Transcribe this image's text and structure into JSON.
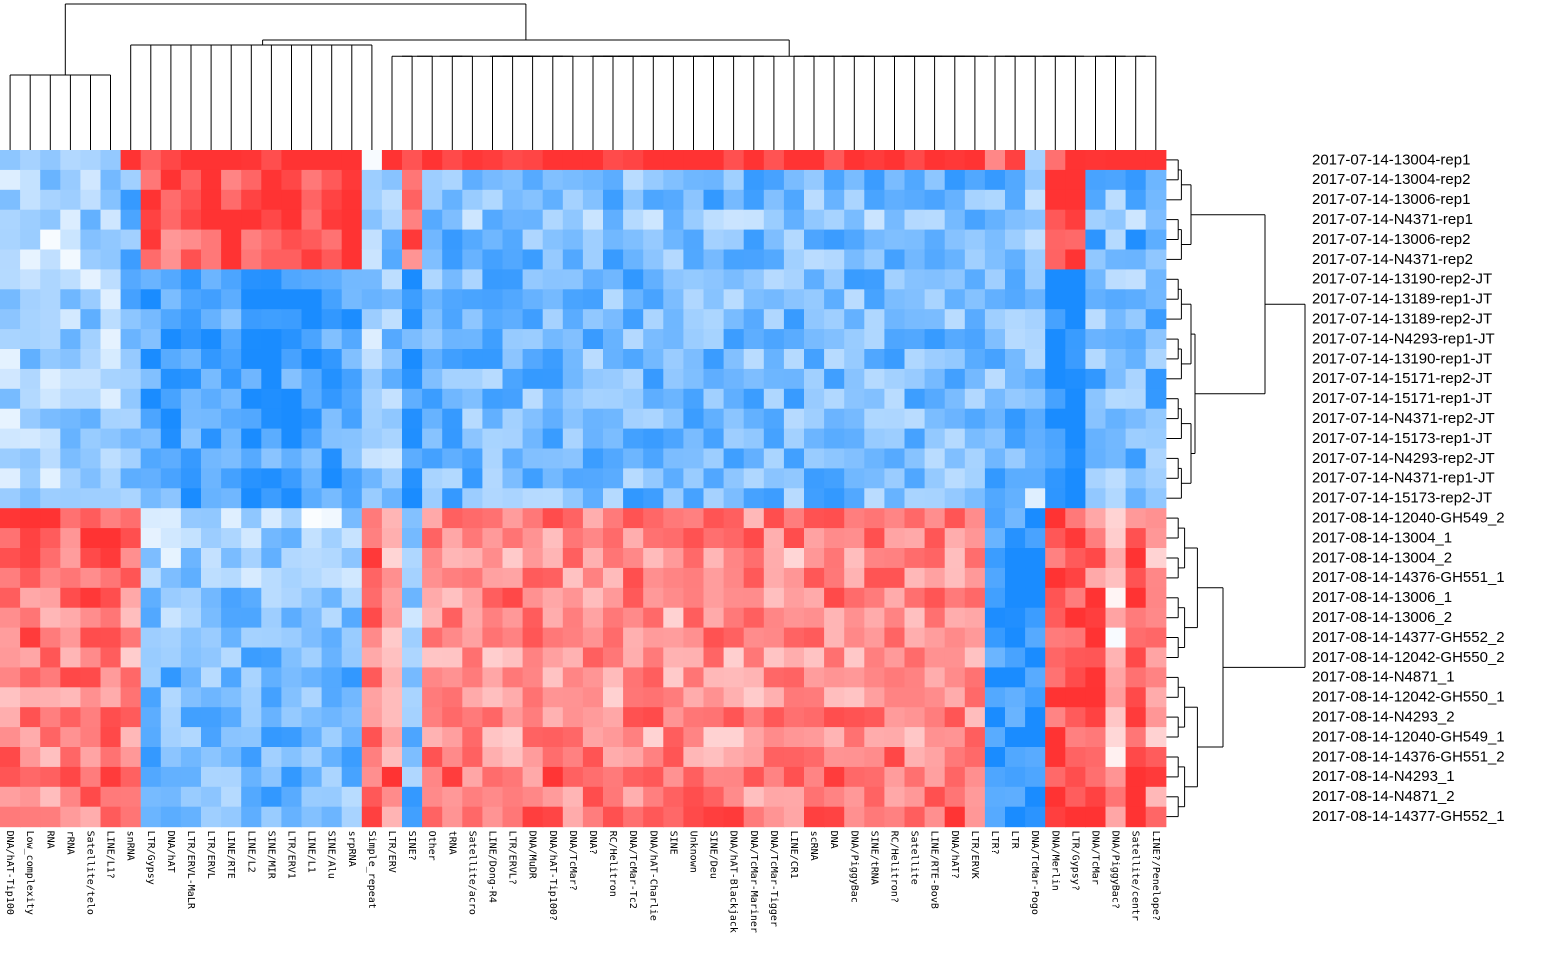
{
  "chart_data": {
    "type": "heatmap",
    "title": "",
    "xlabel": "",
    "ylabel": "",
    "grid": false,
    "legend": "none",
    "clustering": {
      "rows": true,
      "columns": true
    },
    "color_scale": {
      "low": "#1a8cff",
      "mid": "#ffffff",
      "high": "#ff3333"
    },
    "columns": [
      "DNA/hAT-Tip100",
      "Low_complexity",
      "RNA",
      "rRNA",
      "Satellite/telo",
      "LINE/L1?",
      "snRNA",
      "LTR/Gypsy",
      "DNA/hAT",
      "LTR/ERVL-MaLR",
      "LTR/ERVL",
      "LINE/RTE",
      "LINE/L2",
      "SINE/MIR",
      "LTR/ERV1",
      "LINE/L1",
      "SINE/Alu",
      "srpRNA",
      "Simple_repeat",
      "LTR/ERV",
      "SINE?",
      "Other",
      "tRNA",
      "Satellite/acro",
      "LINE/Dong-R4",
      "LTR/ERVL?",
      "DNA/MuDR",
      "DNA/hAT-Tip100?",
      "DNA/TcMar?",
      "DNA?",
      "RC/Helitron",
      "DNA/TcMar-Tc2",
      "DNA/hAT-Charlie",
      "SINE",
      "Unknown",
      "SINE/Deu",
      "DNA/hAT-Blackjack",
      "DNA/TcMar-Mariner",
      "DNA/TcMar-Tigger",
      "LINE/CR1",
      "scRNA",
      "DNA",
      "DNA/PiggyBac",
      "SINE/tRNA",
      "RC/Helitron?",
      "Satellite",
      "LINE/RTE-BovB",
      "DNA/hAT?",
      "LTR/ERVK",
      "LTR?",
      "LTR",
      "DNA/TcMar-Pogo",
      "DNA/Merlin",
      "LTR/Gypsy?",
      "DNA/TcMar",
      "DNA/PiggyBac?",
      "Satellite/centr",
      "LINE?/Penelope?"
    ],
    "rows": [
      "2017-07-14-13004-rep1",
      "2017-07-14-13004-rep2",
      "2017-07-14-13006-rep1",
      "2017-07-14-N4371-rep1",
      "2017-07-14-13006-rep2",
      "2017-07-14-N4371-rep2",
      "2017-07-14-13190-rep2-JT",
      "2017-07-14-13189-rep1-JT",
      "2017-07-14-13189-rep2-JT",
      "2017-07-14-N4293-rep1-JT",
      "2017-07-14-13190-rep1-JT",
      "2017-07-14-15171-rep2-JT",
      "2017-07-14-15171-rep1-JT",
      "2017-07-14-N4371-rep2-JT",
      "2017-07-14-15173-rep1-JT",
      "2017-07-14-N4293-rep2-JT",
      "2017-07-14-N4371-rep1-JT",
      "2017-07-14-15173-rep2-JT",
      "2017-08-14-12040-GH549_2",
      "2017-08-14-13004_1",
      "2017-08-14-13004_2",
      "2017-08-14-14376-GH551_1",
      "2017-08-14-13006_1",
      "2017-08-14-13006_2",
      "2017-08-14-14377-GH552_2",
      "2017-08-14-12042-GH550_2",
      "2017-08-14-N4871_1",
      "2017-08-14-12042-GH550_1",
      "2017-08-14-N4293_2",
      "2017-08-14-12040-GH549_1",
      "2017-08-14-14376-GH551_2",
      "2017-08-14-N4293_1",
      "2017-08-14-N4871_2",
      "2017-08-14-14377-GH552_1"
    ],
    "column_profiles": {
      "A": [
        -0.2,
        -0.4,
        -0.3,
        -0.4,
        -0.3,
        -0.3,
        -0.4,
        -0.4,
        -0.4,
        -0.4,
        -0.4,
        -0.4,
        -0.4,
        -0.4,
        -0.4,
        -0.4,
        -0.4,
        -0.4,
        0.9,
        0.8,
        0.7,
        0.6,
        0.7,
        0.6,
        0.7,
        0.6,
        0.6,
        0.6,
        0.6,
        0.6,
        0.6,
        0.7,
        0.6,
        0.7
      ],
      "B": [
        1.0,
        0.9,
        0.9,
        0.9,
        0.8,
        0.8,
        -0.8,
        -0.8,
        -0.8,
        -0.8,
        -0.8,
        -0.8,
        -0.8,
        -0.8,
        -0.8,
        -0.8,
        -0.8,
        -0.8,
        -0.3,
        -0.4,
        -0.4,
        -0.4,
        -0.5,
        -0.5,
        -0.5,
        -0.6,
        -0.6,
        -0.6,
        -0.6,
        -0.6,
        -0.6,
        -0.6,
        -0.6,
        -0.6
      ],
      "C": [
        -0.2,
        -0.5,
        0.2,
        0.3,
        0.3,
        0.2,
        0.3,
        0.4,
        0.5,
        0.4,
        0.6,
        0.5,
        0.6,
        0.6,
        0.6,
        0.5,
        0.6,
        0.9,
        -0.5,
        -0.5,
        -0.5,
        -0.5,
        -0.5,
        -0.5,
        -0.5,
        -0.5,
        -0.5,
        -0.5,
        -0.5,
        -0.5,
        -0.5,
        -0.5,
        -0.5,
        -0.5
      ],
      "D": [
        0.8,
        -0.6,
        -0.6,
        -0.6,
        -0.6,
        -0.6,
        -0.6,
        -0.6,
        -0.6,
        -0.6,
        -0.6,
        -0.6,
        -0.6,
        -0.6,
        -0.6,
        -0.6,
        -0.6,
        -0.6,
        -0.9,
        -0.9,
        -0.9,
        -0.9,
        -0.9,
        -0.9,
        -0.9,
        -0.9,
        -0.9,
        -0.9,
        -0.9,
        -0.9,
        -0.9,
        -0.9,
        -0.9,
        -0.9
      ],
      "E": [
        1.0,
        1.0,
        1.0,
        1.0,
        1.0,
        1.0,
        -1.0,
        -1.0,
        -1.0,
        -1.0,
        -1.0,
        -1.0,
        -1.0,
        -1.0,
        -1.0,
        -1.0,
        -1.0,
        -1.0,
        0.9,
        0.9,
        0.9,
        0.9,
        0.9,
        0.9,
        0.9,
        0.9,
        0.9,
        0.9,
        0.9,
        0.9,
        0.9,
        0.9,
        0.9,
        0.9
      ],
      "F": [
        1.0,
        -0.6,
        -0.6,
        -0.5,
        -0.6,
        -0.6,
        -0.6,
        -0.6,
        -0.6,
        -0.6,
        -0.6,
        -0.6,
        -0.6,
        -0.6,
        -0.6,
        -0.6,
        -0.6,
        -0.6,
        0.6,
        0.6,
        0.5,
        0.6,
        0.6,
        0.5,
        0.6,
        0.5,
        0.5,
        0.5,
        0.6,
        0.5,
        0.6,
        0.7,
        0.6,
        0.7
      ],
      "G": [
        0.9,
        -0.5,
        -0.5,
        -0.5,
        -0.5,
        -0.5,
        -0.5,
        -0.5,
        -0.5,
        -0.5,
        -0.5,
        -0.5,
        -0.5,
        -0.5,
        -0.5,
        -0.5,
        -0.5,
        -0.5,
        0.2,
        0.3,
        0.2,
        0.3,
        0.2,
        0.3,
        0.2,
        0.3,
        0.2,
        0.3,
        0.2,
        0.3,
        0.2,
        0.8,
        0.7,
        0.3
      ],
      "H": [
        -0.3,
        -0.5,
        -0.5,
        -0.5,
        -0.5,
        -0.5,
        -0.5,
        -0.5,
        -0.5,
        -0.5,
        -0.5,
        -0.5,
        -0.5,
        -0.5,
        -0.5,
        -0.5,
        -0.5,
        -0.4,
        -1.0,
        -1.0,
        -1.0,
        -1.0,
        -1.0,
        -1.0,
        -1.0,
        -1.0,
        -1.0,
        -1.0,
        -1.0,
        -1.0,
        -1.0,
        -1.0,
        -1.0,
        -1.0
      ],
      "I": [
        1.0,
        -0.7,
        -0.6,
        -0.5,
        -0.7,
        -0.7,
        -0.5,
        -0.6,
        -0.6,
        -0.6,
        -0.6,
        -0.6,
        -0.6,
        -0.6,
        -0.6,
        -0.6,
        -0.6,
        -0.6,
        0.5,
        0.7,
        0.8,
        0.6,
        0.9,
        0.9,
        0.8,
        0.8,
        0.8,
        0.8,
        0.9,
        0.9,
        0.9,
        1.0,
        1.0,
        1.0
      ]
    },
    "column_profile_assignment": "AAAAAAFBBBBBBBBBBBAGBFFFFFFFFFFFFFFFFFFFFFFFFFFFFDDHEEIGI"
  }
}
